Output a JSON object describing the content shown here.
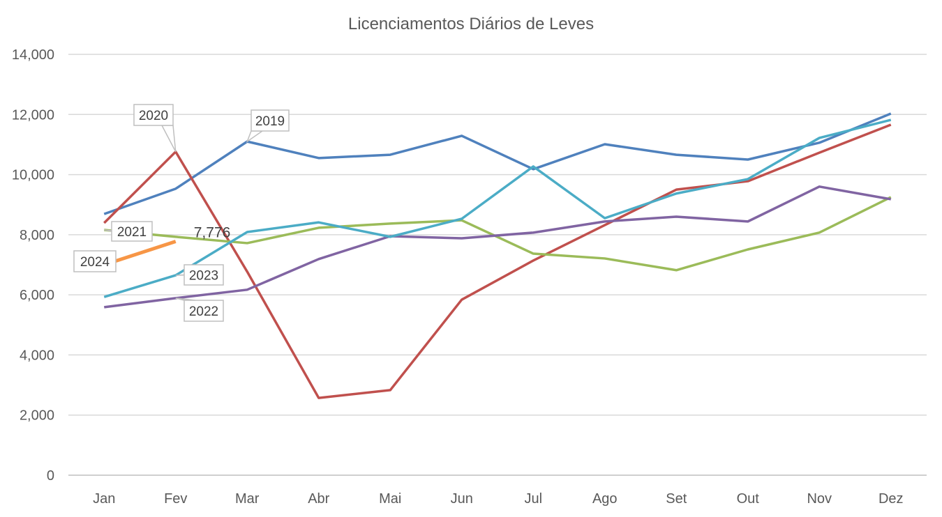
{
  "chart_data": {
    "type": "line",
    "title": "Licenciamentos Diários de Leves",
    "xlabel": "",
    "ylabel": "",
    "categories": [
      "Jan",
      "Fev",
      "Mar",
      "Abr",
      "Mai",
      "Jun",
      "Jul",
      "Ago",
      "Set",
      "Out",
      "Nov",
      "Dez"
    ],
    "ylim": [
      0,
      14000
    ],
    "yticks": [
      "0",
      "2,000",
      "4,000",
      "6,000",
      "8,000",
      "10,000",
      "12,000",
      "14,000"
    ],
    "grid": true,
    "legend": "none (series labeled by callouts)",
    "series": [
      {
        "name": "2019",
        "color": "#4F81BD",
        "values": [
          8690,
          9530,
          11100,
          10550,
          10660,
          11290,
          10180,
          11010,
          10660,
          10500,
          11060,
          12030
        ]
      },
      {
        "name": "2020",
        "color": "#C0504D",
        "values": [
          8390,
          10760,
          6770,
          2570,
          2830,
          5840,
          7140,
          8320,
          9500,
          9780,
          10730,
          11660
        ]
      },
      {
        "name": "2021",
        "color": "#9BBB59",
        "values": [
          8160,
          7930,
          7720,
          8230,
          8370,
          8480,
          7370,
          7210,
          6820,
          7510,
          8070,
          9250
        ]
      },
      {
        "name": "2022",
        "color": "#8064A2",
        "values": [
          5590,
          5890,
          6170,
          7190,
          7950,
          7880,
          8070,
          8440,
          8600,
          8440,
          9600,
          9180
        ]
      },
      {
        "name": "2023",
        "color": "#4BACC6",
        "values": [
          5930,
          6650,
          8090,
          8410,
          7930,
          8530,
          10270,
          8550,
          9370,
          9850,
          11220,
          11820
        ]
      },
      {
        "name": "2024",
        "color": "#F79646",
        "values": [
          7000,
          7776,
          null,
          null,
          null,
          null,
          null,
          null,
          null,
          null,
          null,
          null
        ]
      }
    ],
    "data_labels": [
      {
        "series": "2024",
        "category": "Fev",
        "text": "7,776"
      }
    ]
  }
}
